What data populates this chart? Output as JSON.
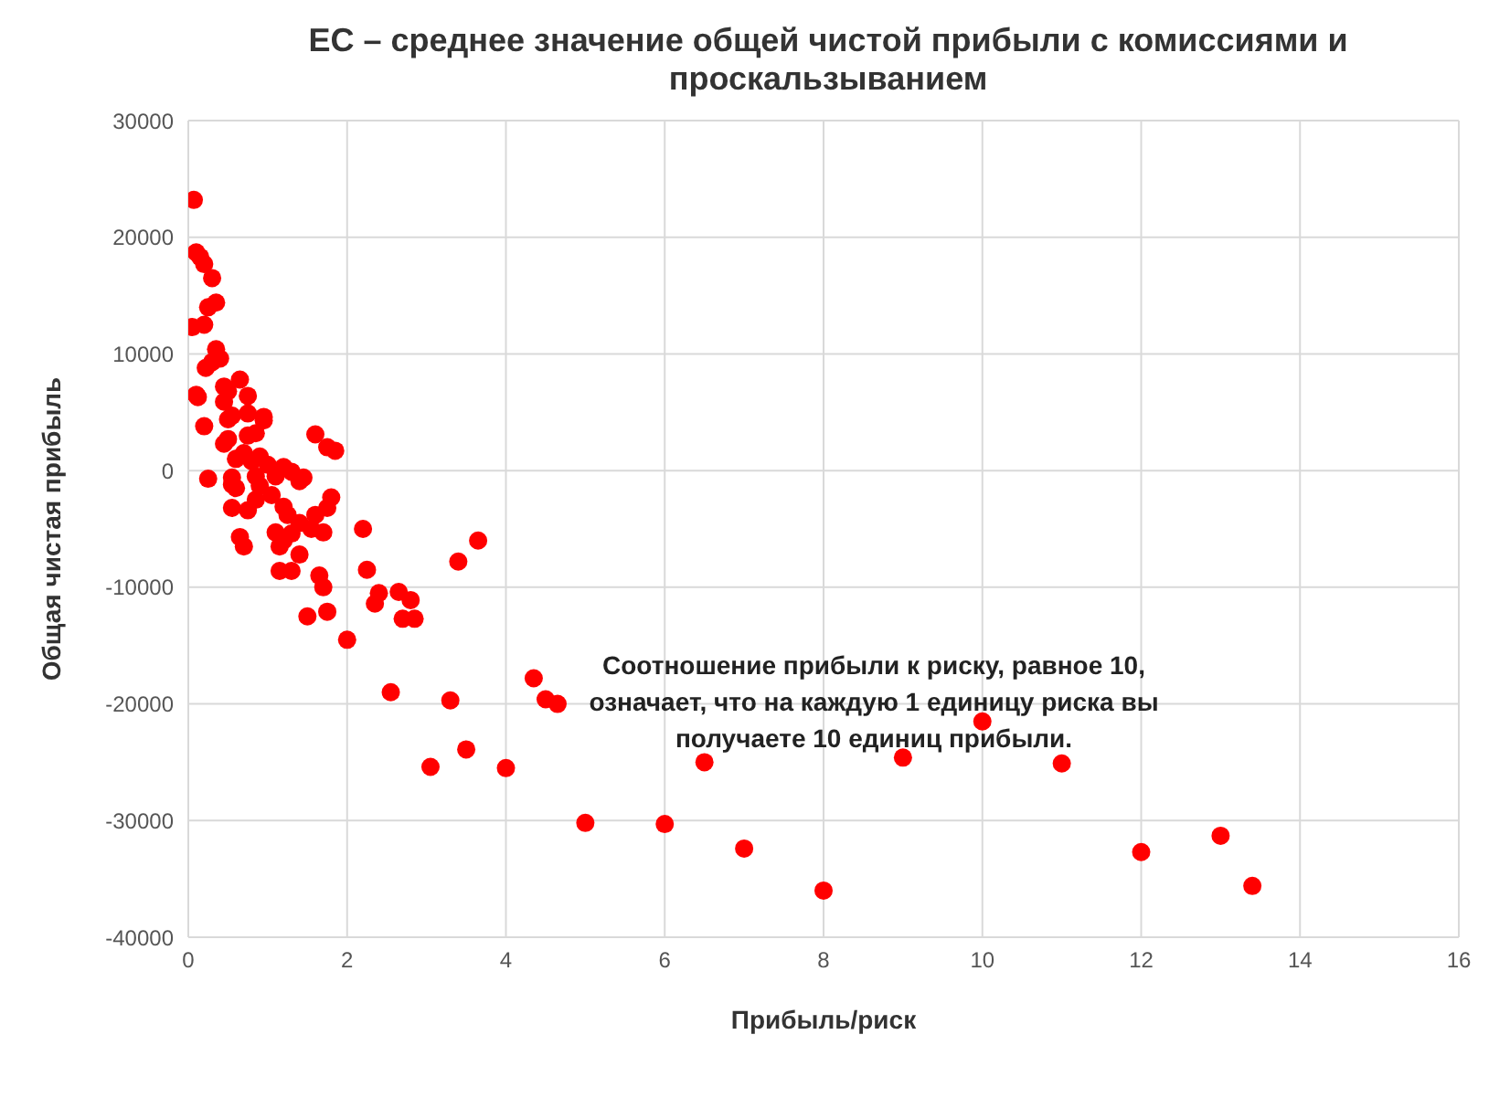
{
  "chart_data": {
    "type": "scatter",
    "title": "EC – среднее значение общей чистой прибыли с комиссиями и проскальзыванием",
    "xlabel": "Прибыль/риск",
    "ylabel": "Общая чистая прибыль",
    "annotations": [
      "Соотношение прибыли к риску, равное 10, означает, что на каждую 1 единицу риска вы получаете 10 единиц прибыли."
    ],
    "xlim": [
      0,
      16
    ],
    "xticks": [
      0,
      2,
      4,
      6,
      8,
      10,
      12,
      14,
      16
    ],
    "ylim": [
      -40000,
      30000
    ],
    "yticks": [
      -40000,
      -30000,
      -20000,
      -10000,
      0,
      10000,
      20000,
      30000
    ],
    "grid": true,
    "legend": false,
    "marker": "circle",
    "series": [
      {
        "color": "#ff0000",
        "x": [
          0.07,
          0.1,
          0.15,
          0.2,
          0.3,
          0.05,
          0.2,
          0.25,
          0.35,
          0.35,
          0.3,
          0.22,
          0.4,
          0.1,
          0.12,
          0.45,
          0.5,
          0.45,
          0.55,
          0.5,
          0.2,
          0.5,
          0.45,
          0.6,
          0.75,
          0.85,
          0.75,
          0.95,
          0.95,
          0.65,
          0.75,
          0.25,
          0.55,
          0.55,
          0.6,
          0.65,
          0.7,
          0.55,
          0.75,
          0.7,
          0.8,
          0.9,
          1.0,
          0.85,
          0.9,
          0.85,
          1.05,
          1.1,
          1.2,
          1.3,
          1.4,
          1.45,
          1.1,
          1.2,
          1.15,
          1.3,
          1.25,
          1.4,
          1.3,
          1.15,
          1.4,
          1.2,
          1.5,
          1.65,
          1.7,
          1.75,
          1.55,
          1.6,
          1.75,
          1.8,
          1.7,
          1.6,
          1.75,
          1.85,
          2.0,
          2.2,
          2.25,
          2.35,
          2.4,
          2.55,
          2.65,
          2.7,
          2.8,
          2.85,
          3.05,
          3.3,
          3.4,
          3.5,
          3.65,
          4.0,
          4.35,
          4.5,
          4.65,
          5.0,
          6.0,
          6.5,
          7.0,
          8.0,
          9.0,
          10.0,
          11.0,
          12.0,
          13.0,
          13.4
        ],
        "values": [
          23200,
          18700,
          18300,
          17700,
          16500,
          12300,
          12500,
          14000,
          14400,
          10400,
          9300,
          8800,
          9600,
          6500,
          6300,
          7200,
          6800,
          5900,
          4700,
          4400,
          3800,
          2700,
          2300,
          1000,
          4900,
          3200,
          3000,
          4300,
          4600,
          7800,
          6400,
          -700,
          -600,
          -1200,
          -1500,
          -5700,
          -6500,
          -3200,
          -3400,
          1500,
          800,
          1200,
          500,
          -500,
          -1300,
          -2500,
          -2100,
          -500,
          300,
          -100,
          -900,
          -600,
          -5300,
          -6000,
          -6500,
          -5400,
          -3800,
          -4500,
          -8600,
          -8600,
          -7200,
          -3100,
          -12500,
          -9000,
          -10000,
          -12100,
          -5000,
          -3800,
          -3200,
          -2300,
          -5300,
          3100,
          2000,
          1700,
          -14500,
          -5000,
          -8500,
          -11400,
          -10500,
          -19000,
          -10400,
          -12700,
          -11100,
          -12700,
          -25400,
          -19700,
          -7800,
          -23900,
          -6000,
          -25500,
          -17800,
          -19600,
          -20000,
          -30200,
          -30300,
          -25000,
          -32400,
          -36000,
          -24600,
          -21500,
          -25100,
          -32700,
          -31300,
          -35600
        ]
      }
    ]
  }
}
